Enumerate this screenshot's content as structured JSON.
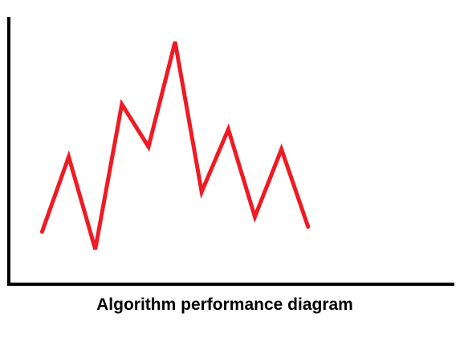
{
  "chart_data": {
    "type": "line",
    "title": "Algorithm performance diagram",
    "xlabel": "",
    "ylabel": "",
    "grid": false,
    "axis_ticks": false,
    "x": [
      0,
      1,
      2,
      3,
      4,
      5,
      6,
      7,
      8,
      9,
      10
    ],
    "series": [
      {
        "values": [
          2.1,
          5.1,
          1.4,
          7.2,
          5.5,
          9.7,
          3.7,
          6.2,
          2.7,
          5.4,
          2.3
        ],
        "color": "#ed1c24"
      }
    ],
    "xlim": [
      -1.25,
      15.5
    ],
    "ylim": [
      0,
      10.7
    ],
    "axis_color": "#000000"
  }
}
